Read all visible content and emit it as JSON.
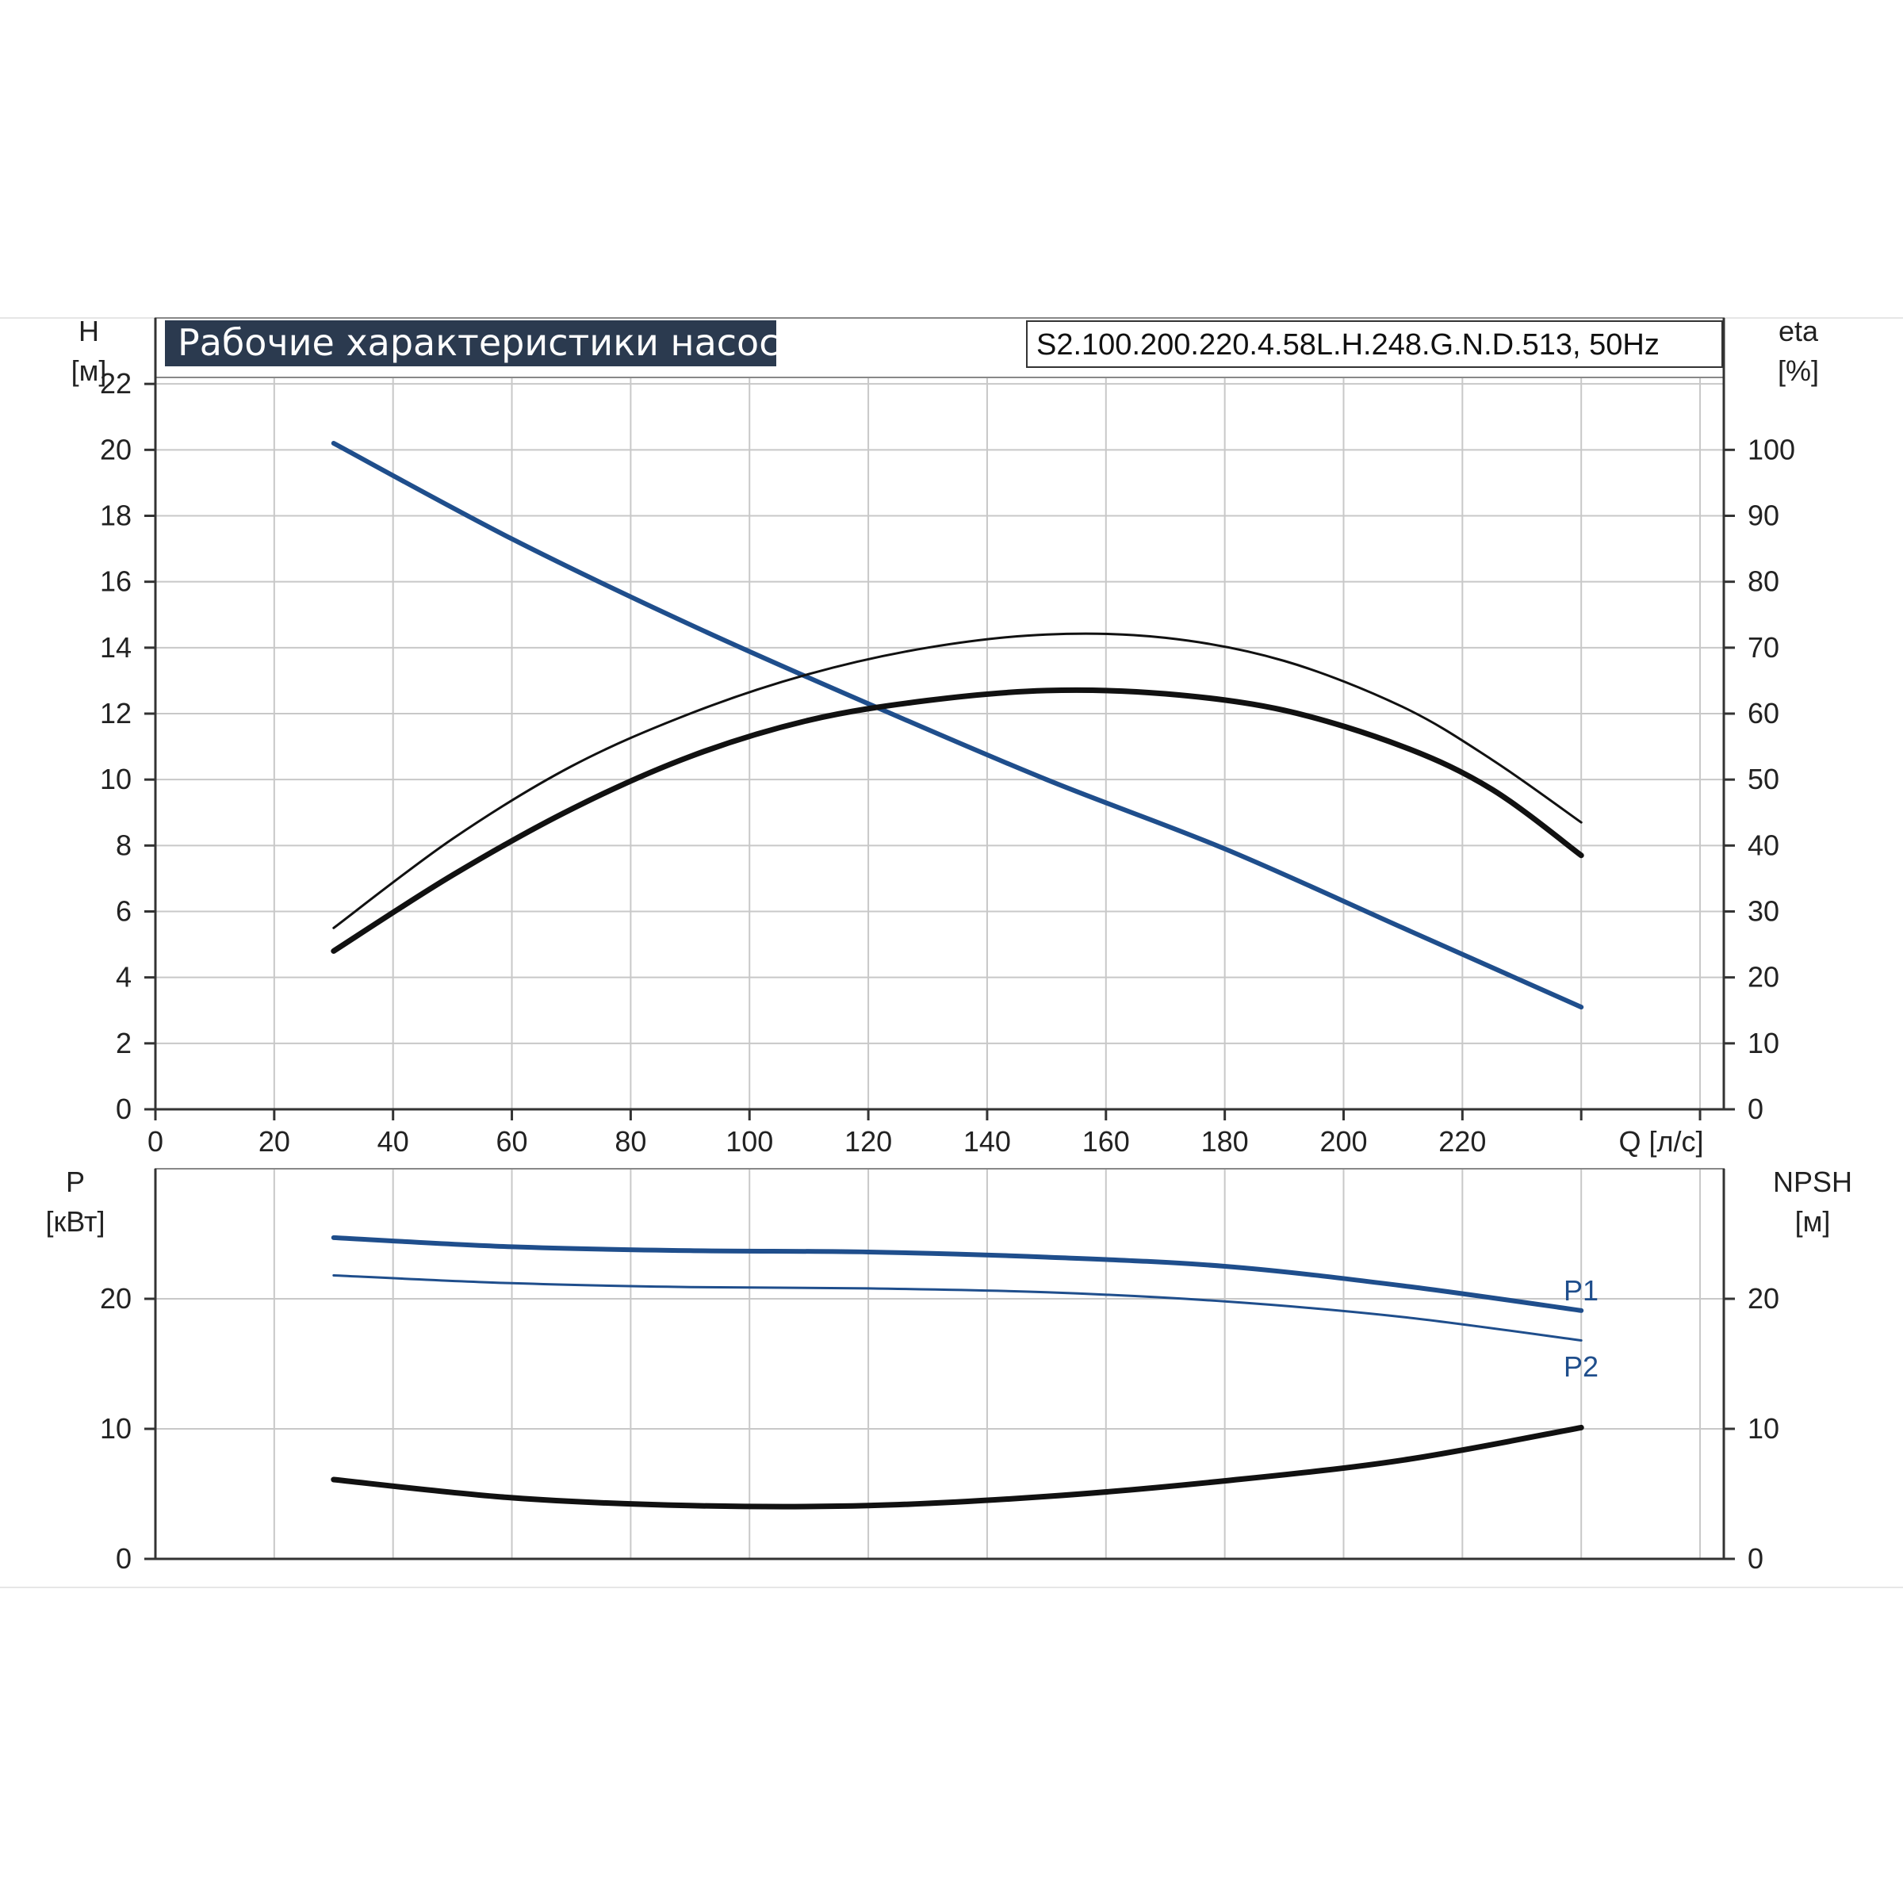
{
  "colors": {
    "blue": "#1f4e8c",
    "black": "#111111",
    "grid": "#c8c8c8",
    "title_bg": "#2b3a4f"
  },
  "header": {
    "title": "Рабочие характеристики насоса",
    "model": "S2.100.200.220.4.58L.H.248.G.N.D.513, 50Hz"
  },
  "chart_data": [
    {
      "type": "line",
      "panel": "top",
      "x_axis": {
        "label": "Q [л/с]",
        "range": [
          0,
          264
        ],
        "ticks": [
          0,
          20,
          40,
          60,
          80,
          100,
          120,
          140,
          160,
          180,
          200,
          220
        ]
      },
      "y_left": {
        "label_line1": "H",
        "label_line2": "[м]",
        "range": [
          0,
          24
        ],
        "ticks": [
          0,
          2,
          4,
          6,
          8,
          10,
          12,
          14,
          16,
          18,
          20,
          22
        ]
      },
      "y_right": {
        "label_line1": "eta",
        "label_line2": "[%]",
        "range": [
          0,
          120
        ],
        "ticks": [
          0,
          10,
          20,
          30,
          40,
          50,
          60,
          70,
          80,
          90,
          100
        ]
      },
      "grid": true,
      "series": [
        {
          "id": "head",
          "axis": "left",
          "color": "#1f4e8c",
          "width": 6,
          "x": [
            30,
            60,
            90,
            120,
            150,
            180,
            210,
            240
          ],
          "y": [
            20.2,
            17.3,
            14.7,
            12.3,
            10.0,
            7.9,
            5.5,
            3.1
          ]
        },
        {
          "id": "eta",
          "axis": "right",
          "color": "#111111",
          "width": 3,
          "x": [
            30,
            50,
            70,
            90,
            110,
            130,
            150,
            170,
            190,
            210,
            225,
            240
          ],
          "y": [
            27.5,
            41,
            52,
            60,
            66,
            70,
            72,
            71.5,
            68,
            61,
            53,
            43.5
          ]
        },
        {
          "id": "eta_p",
          "axis": "right",
          "color": "#111111",
          "width": 7,
          "x": [
            30,
            50,
            70,
            90,
            110,
            130,
            150,
            170,
            190,
            210,
            225,
            240
          ],
          "y": [
            24,
            35.5,
            45.5,
            53.5,
            59,
            62,
            63.5,
            63,
            60.5,
            55,
            48.5,
            38.5
          ]
        }
      ]
    },
    {
      "type": "line",
      "panel": "bottom",
      "x_axis": {
        "range": [
          0,
          264
        ]
      },
      "y_left": {
        "label_line1": "P",
        "label_line2": "[кВт]",
        "range": [
          0,
          30
        ],
        "ticks": [
          0,
          10,
          20
        ]
      },
      "y_right": {
        "label_line1": "NPSH",
        "label_line2": "[м]",
        "range": [
          0,
          30
        ],
        "ticks": [
          0,
          10,
          20
        ]
      },
      "grid": true,
      "series": [
        {
          "id": "P1",
          "name": "P1",
          "axis": "left",
          "color": "#1f4e8c",
          "width": 6,
          "x": [
            30,
            60,
            90,
            120,
            150,
            180,
            210,
            240
          ],
          "y": [
            24.7,
            24.0,
            23.7,
            23.6,
            23.2,
            22.5,
            21.0,
            19.1
          ]
        },
        {
          "id": "P2",
          "name": "P2",
          "axis": "left",
          "color": "#1f4e8c",
          "width": 3,
          "x": [
            30,
            60,
            90,
            120,
            150,
            180,
            210,
            240
          ],
          "y": [
            21.8,
            21.2,
            20.9,
            20.8,
            20.5,
            19.8,
            18.6,
            16.8
          ]
        },
        {
          "id": "NPSH",
          "axis": "right",
          "color": "#111111",
          "width": 7,
          "x": [
            30,
            60,
            90,
            120,
            150,
            180,
            210,
            240
          ],
          "y": [
            6.1,
            4.7,
            4.1,
            4.1,
            4.8,
            6.0,
            7.6,
            10.1
          ]
        }
      ]
    }
  ]
}
